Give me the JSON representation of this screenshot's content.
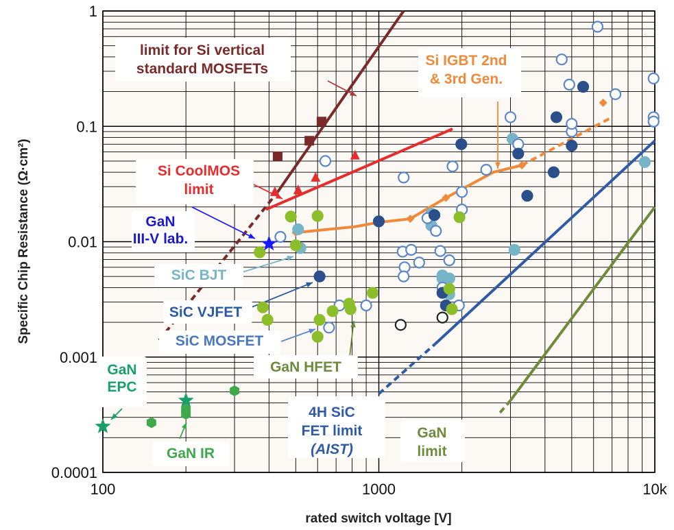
{
  "chart_data": {
    "type": "scatter",
    "xlabel": "rated switch voltage [V]",
    "ylabel": "Specific Chip Resistance (Ω·cm²)",
    "x_scale": "log",
    "y_scale": "log",
    "xlim": [
      100,
      10000
    ],
    "ylim": [
      0.0001,
      1
    ],
    "grid": true,
    "x_ticks": [
      {
        "value": 100,
        "label": "100"
      },
      {
        "value": 1000,
        "label": "1000"
      },
      {
        "value": 10000,
        "label": "10k"
      }
    ],
    "y_ticks": [
      {
        "value": 1,
        "label": "1"
      },
      {
        "value": 0.1,
        "label": "0.1"
      },
      {
        "value": 0.01,
        "label": "0.01"
      },
      {
        "value": 0.001,
        "label": "0.001"
      },
      {
        "value": 0.0001,
        "label": "0.0001"
      }
    ],
    "colors": {
      "si_limit": "#7b2a2a",
      "coolmos": "#e52d2d",
      "igbt": "#f0893a",
      "sic_limit": "#2f5aa6",
      "gan_limit": "#6e8a3c",
      "sic_bjt": "#78b4c8",
      "sic_vjfet": "#2a4f8a",
      "sic_mosfet": "#5b86c8",
      "gan_hfet": "#8cbd2a",
      "gan_lab": "#1a1aff",
      "gan_epc": "#19a06a",
      "grid": "#000000",
      "background": "#fcf9f4"
    },
    "lines": [
      {
        "id": "si-limit-line",
        "color": "si_limit",
        "dash": false,
        "x": [
          430,
          1230
        ],
        "y": [
          0.027,
          1.0
        ]
      },
      {
        "id": "si-limit-dashed",
        "color": "si_limit",
        "dash": true,
        "x": [
          160,
          430
        ],
        "y": [
          0.0014,
          0.027
        ]
      },
      {
        "id": "coolmos-limit-line",
        "color": "coolmos",
        "dash": false,
        "x": [
          390,
          1850
        ],
        "y": [
          0.019,
          0.095
        ]
      },
      {
        "id": "igbt-line",
        "color": "igbt",
        "dash": false,
        "x": [
          500,
          820,
          1000,
          1300,
          1750,
          2600,
          3300
        ],
        "y": [
          0.012,
          0.0135,
          0.0147,
          0.0158,
          0.024,
          0.04,
          0.046
        ]
      },
      {
        "id": "igbt-dashed",
        "color": "igbt",
        "dash": true,
        "x": [
          3300,
          7000
        ],
        "y": [
          0.046,
          0.12
        ]
      },
      {
        "id": "sic-fet-limit-line",
        "color": "sic_limit",
        "dash": false,
        "x": [
          1600,
          10000
        ],
        "y": [
          0.0013,
          0.075
        ]
      },
      {
        "id": "sic-fet-limit-dashed",
        "color": "sic_limit",
        "dash": true,
        "x": [
          1000,
          1600
        ],
        "y": [
          0.00048,
          0.0013
        ]
      },
      {
        "id": "gan-limit-line",
        "color": "gan_limit",
        "dash": false,
        "x": [
          3000,
          10000
        ],
        "y": [
          0.00042,
          0.02
        ]
      },
      {
        "id": "gan-limit-dashed",
        "color": "gan_limit",
        "dash": true,
        "x": [
          2750,
          3000
        ],
        "y": [
          0.00033,
          0.00042
        ]
      }
    ],
    "series": [
      {
        "group": "si_mosfet_squares",
        "marker": "square",
        "color": "#7b2a2a",
        "filled": true,
        "points": [
          [
            430,
            0.055
          ],
          [
            560,
            0.075
          ],
          [
            620,
            0.11
          ]
        ]
      },
      {
        "group": "coolmos_triangles",
        "marker": "triangle",
        "color": "#e52d2d",
        "filled": true,
        "points": [
          [
            420,
            0.027
          ],
          [
            510,
            0.028
          ],
          [
            590,
            0.036
          ],
          [
            820,
            0.056
          ]
        ]
      },
      {
        "group": "igbt_diamonds",
        "marker": "diamond",
        "color": "#f0893a",
        "filled": true,
        "points": [
          [
            500,
            0.012
          ],
          [
            1300,
            0.0158
          ],
          [
            1750,
            0.024
          ],
          [
            3300,
            0.046
          ],
          [
            6500,
            0.16
          ]
        ]
      },
      {
        "group": "sic_bjt",
        "marker": "circle",
        "color": "#78b4c8",
        "filled": true,
        "points": [
          [
            510,
            0.0128
          ],
          [
            520,
            0.0088
          ],
          [
            3050,
            0.078
          ],
          [
            3100,
            0.0085
          ],
          [
            1700,
            0.0048
          ],
          [
            1700,
            0.0051
          ],
          [
            1550,
            0.0175
          ],
          [
            1550,
            0.0138
          ],
          [
            1800,
            0.0048
          ],
          [
            1800,
            0.0035
          ],
          [
            9200,
            0.049
          ]
        ]
      },
      {
        "group": "sic_open",
        "marker": "circle",
        "color": "#5b86c8",
        "filled": false,
        "points": [
          [
            440,
            0.011
          ],
          [
            640,
            0.05
          ],
          [
            1230,
            0.036
          ],
          [
            1220,
            0.0082
          ],
          [
            1240,
            0.006
          ],
          [
            1230,
            0.005
          ],
          [
            1310,
            0.0085
          ],
          [
            1400,
            0.0066
          ],
          [
            1500,
            0.016
          ],
          [
            1610,
            0.0124
          ],
          [
            1670,
            0.0083
          ],
          [
            1700,
            0.004
          ],
          [
            1800,
            0.0069
          ],
          [
            1850,
            0.045
          ],
          [
            2000,
            0.027
          ],
          [
            2000,
            0.019
          ],
          [
            1950,
            0.0028
          ],
          [
            2450,
            0.042
          ],
          [
            3000,
            0.12
          ],
          [
            3200,
            0.07
          ],
          [
            4600,
            0.38
          ],
          [
            4900,
            0.23
          ],
          [
            5000,
            0.09
          ],
          [
            5000,
            0.105
          ],
          [
            6200,
            0.73
          ],
          [
            7200,
            0.19
          ],
          [
            9900,
            0.26
          ],
          [
            9900,
            0.12
          ],
          [
            9900,
            0.11
          ],
          [
            720,
            0.0028
          ],
          [
            900,
            0.0028
          ],
          [
            660,
            0.0018
          ]
        ]
      },
      {
        "group": "sic_vjfet_dark",
        "marker": "circle",
        "color": "#2a4f8a",
        "filled": true,
        "points": [
          [
            610,
            0.005
          ],
          [
            1000,
            0.015
          ],
          [
            1590,
            0.017
          ],
          [
            1990,
            0.07
          ],
          [
            1700,
            0.0036
          ],
          [
            1750,
            0.0028
          ],
          [
            3200,
            0.058
          ],
          [
            3450,
            0.025
          ],
          [
            4300,
            0.04
          ],
          [
            4400,
            0.12
          ],
          [
            5000,
            0.068
          ],
          [
            5500,
            0.22
          ]
        ]
      },
      {
        "group": "gan_hfet",
        "marker": "circle",
        "color": "#8cbd2a",
        "filled": true,
        "points": [
          [
            370,
            0.0081
          ],
          [
            380,
            0.0027
          ],
          [
            395,
            0.0021
          ],
          [
            480,
            0.0165
          ],
          [
            500,
            0.0093
          ],
          [
            600,
            0.0167
          ],
          [
            600,
            0.0015
          ],
          [
            610,
            0.0021
          ],
          [
            680,
            0.0025
          ],
          [
            780,
            0.0029
          ],
          [
            790,
            0.0026
          ],
          [
            950,
            0.0036
          ],
          [
            1800,
            0.0039
          ],
          [
            1840,
            0.0026
          ],
          [
            1960,
            0.0163
          ]
        ]
      },
      {
        "group": "gan_ir",
        "marker": "hexagon",
        "color": "#3fa84a",
        "filled": true,
        "points": [
          [
            150,
            0.00027
          ],
          [
            200,
            0.00035
          ],
          [
            200,
            0.00032
          ],
          [
            300,
            0.00051
          ]
        ]
      },
      {
        "group": "gan_epc_stars",
        "marker": "star",
        "color": "#19a06a",
        "filled": true,
        "points": [
          [
            100,
            0.00025
          ],
          [
            200,
            0.00042
          ]
        ]
      },
      {
        "group": "gan_lab_star",
        "marker": "star",
        "color": "#1a1aff",
        "filled": true,
        "points": [
          [
            400,
            0.0096
          ]
        ]
      },
      {
        "group": "black_open",
        "marker": "circle",
        "color": "#222222",
        "filled": false,
        "points": [
          [
            1200,
            0.0019
          ],
          [
            1700,
            0.0022
          ]
        ]
      }
    ],
    "annotations": [
      {
        "id": "anno-si-limit",
        "lines": [
          "limit for Si vertical",
          "standard MOSFETs"
        ],
        "color": "#7b2a2a"
      },
      {
        "id": "anno-igbt",
        "lines": [
          "Si IGBT 2nd",
          "& 3rd Gen."
        ],
        "color": "#f0893a"
      },
      {
        "id": "anno-coolmos",
        "lines": [
          "Si CoolMOS",
          "limit"
        ],
        "color": "#e52d2d"
      },
      {
        "id": "anno-gan-lab",
        "lines": [
          "GaN",
          "III-V lab."
        ],
        "color": "#1a1acc"
      },
      {
        "id": "anno-sic-bjt",
        "lines": [
          "SiC BJT"
        ],
        "color": "#78b4c8"
      },
      {
        "id": "anno-sic-vjfet",
        "lines": [
          "SiC VJFET"
        ],
        "color": "#2a5aa0"
      },
      {
        "id": "anno-sic-mosfet",
        "lines": [
          "SiC MOSFET"
        ],
        "color": "#4a78c0"
      },
      {
        "id": "anno-gan-hfet",
        "lines": [
          "GaN HFET"
        ],
        "color": "#6e8a3c"
      },
      {
        "id": "anno-gan-epc",
        "lines": [
          "GaN",
          "EPC"
        ],
        "color": "#19a06a"
      },
      {
        "id": "anno-gan-ir",
        "lines": [
          "GaN IR"
        ],
        "color": "#3fa84a"
      },
      {
        "id": "anno-sic-fet-limit",
        "lines": [
          "4H SiC",
          "FET   limit",
          "(AIST)"
        ],
        "color": "#2f5aa6"
      },
      {
        "id": "anno-gan-limit",
        "lines": [
          "GaN",
          "limit"
        ],
        "color": "#6e8a3c"
      }
    ]
  }
}
